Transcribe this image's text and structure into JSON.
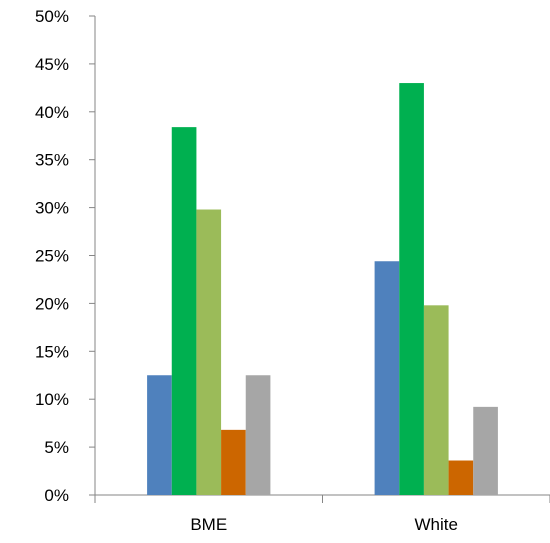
{
  "chart_data": {
    "type": "bar",
    "categories": [
      "BME",
      "White"
    ],
    "series": [
      {
        "values": [
          12.5,
          24.4
        ],
        "color": "#4f81bd"
      },
      {
        "values": [
          38.4,
          43.0
        ],
        "color": "#00b050"
      },
      {
        "values": [
          29.8,
          19.8
        ],
        "color": "#9bbb59"
      },
      {
        "values": [
          6.8,
          3.6
        ],
        "color": "#cc6600"
      },
      {
        "values": [
          12.5,
          9.2
        ],
        "color": "#a6a6a6"
      }
    ],
    "ylim": [
      0,
      50
    ],
    "yticks": [
      "0%",
      "5%",
      "10%",
      "15%",
      "20%",
      "25%",
      "30%",
      "35%",
      "40%",
      "45%",
      "50%"
    ],
    "grid": false,
    "legend": "none"
  }
}
